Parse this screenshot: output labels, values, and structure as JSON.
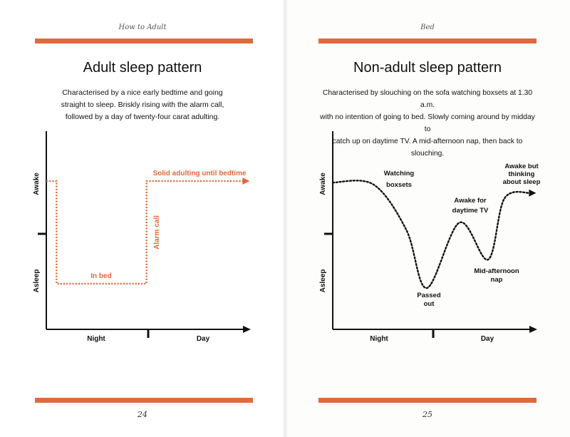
{
  "left_page": {
    "running_head": "How to Adult",
    "title": "Adult sleep pattern",
    "description_lines": [
      "Characterised by a nice early bedtime and going",
      "straight to sleep. Briskly rising with the alarm call,",
      "followed by a day of twenty-four carat adulting."
    ],
    "page_number": "24"
  },
  "right_page": {
    "running_head": "Bed",
    "title": "Non-adult sleep pattern",
    "description_lines": [
      "Characterised by slouching on the sofa watching boxsets at 1.30 a.m.",
      "with no intention of going to bed. Slowly coming around by midday to",
      "catch up on daytime TV. A mid-afternoon nap, then back to slouching."
    ],
    "page_number": "25"
  },
  "colors": {
    "accent": "#e06a3b",
    "ink": "#111111"
  },
  "chart_data": [
    {
      "type": "line",
      "title": "Adult sleep pattern",
      "xlabel": "",
      "ylabel": "",
      "x_tick_labels": [
        "Night",
        "Day"
      ],
      "y_tick_labels": [
        "Awake",
        "Asleep"
      ],
      "y_levels": {
        "Awake": 1,
        "Asleep": 0
      },
      "series": [
        {
          "line_style": "dotted",
          "color": "#e06a3b",
          "points": [
            {
              "x": 0.0,
              "y": 1
            },
            {
              "x": 0.05,
              "y": 1
            },
            {
              "x": 0.05,
              "y": 0
            },
            {
              "x": 0.49,
              "y": 0
            },
            {
              "x": 0.49,
              "y": 1
            },
            {
              "x": 0.97,
              "y": 1
            }
          ]
        }
      ],
      "annotations": [
        {
          "text": "Solid adulting until bedtime",
          "x": 0.73,
          "y": 1
        },
        {
          "text": "Alarm call",
          "x": 0.52,
          "y": 0.5
        },
        {
          "text": "In bed",
          "x": 0.27,
          "y": 0
        }
      ]
    },
    {
      "type": "line",
      "title": "Non-adult sleep pattern",
      "xlabel": "",
      "ylabel": "",
      "x_tick_labels": [
        "Night",
        "Day"
      ],
      "y_tick_labels": [
        "Awake",
        "Asleep"
      ],
      "y_levels": {
        "Awake": 1,
        "Asleep": 0
      },
      "series": [
        {
          "line_style": "dotted",
          "color": "#111111",
          "points": [
            {
              "x": 0.0,
              "y": 1
            },
            {
              "x": 0.2,
              "y": 0.98
            },
            {
              "x": 0.36,
              "y": 0.55
            },
            {
              "x": 0.46,
              "y": 0.0
            },
            {
              "x": 0.62,
              "y": 0.62
            },
            {
              "x": 0.76,
              "y": 0.27
            },
            {
              "x": 0.84,
              "y": 0.85
            },
            {
              "x": 0.97,
              "y": 0.9
            }
          ]
        }
      ],
      "annotations": [
        {
          "text": "Watching boxsets",
          "x": 0.3,
          "y": 1.0
        },
        {
          "text": "Awake for daytime TV",
          "x": 0.65,
          "y": 0.9
        },
        {
          "text": "Awake but thinking about sleep",
          "x": 0.93,
          "y": 1.2
        },
        {
          "text": "Mid-afternoon nap",
          "x": 0.8,
          "y": 0.15
        },
        {
          "text": "Passed out",
          "x": 0.47,
          "y": -0.1
        }
      ]
    }
  ]
}
